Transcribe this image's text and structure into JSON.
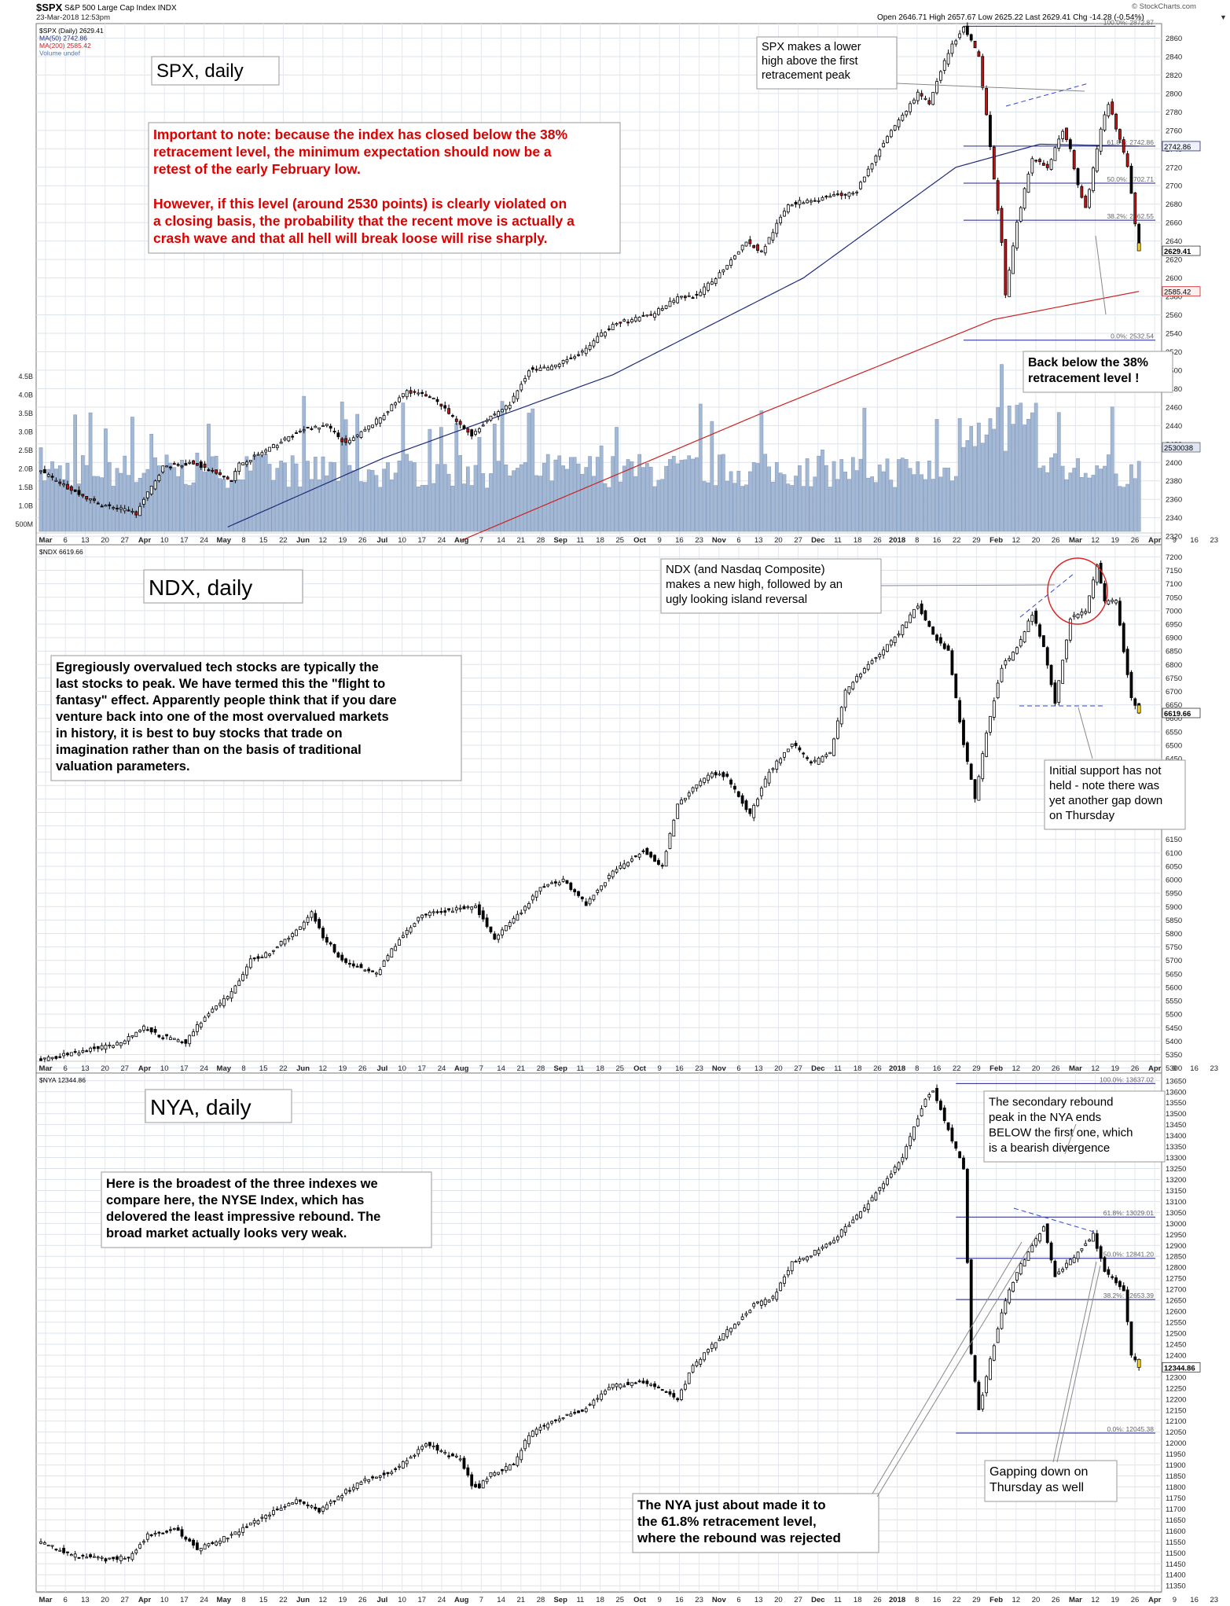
{
  "header": {
    "symbol": "$SPX",
    "name": "S&P 500 Large Cap Index INDX",
    "date": "23-Mar-2018 12:53pm",
    "ohlc": "Open 2646.71  High 2657.67  Low 2625.22  Last 2629.41  Chg -14.28 (-0.54%)",
    "brand": "© StockCharts.com"
  },
  "panels": [
    {
      "id": "spx",
      "legend": [
        "$SPX (Daily) 2629.41",
        "MA(50) 2742.86",
        "MA(200) 2585.42",
        "Volume undef"
      ],
      "legend_colors": [
        "#000000",
        "#1f2a7a",
        "#cc2222",
        "#5577aa"
      ],
      "title": "SPX, daily",
      "ylim": [
        2315,
        2880
      ],
      "ticks": [
        2320,
        2340,
        2360,
        2380,
        2400,
        2420,
        2440,
        2460,
        2480,
        2500,
        2520,
        2540,
        2560,
        2580,
        2600,
        2620,
        2640,
        2660,
        2680,
        2700,
        2720,
        2740,
        2760,
        2780,
        2800,
        2820,
        2840,
        2860
      ],
      "last_label": "2629.41",
      "ma50_label": "2742.86",
      "ma200_label": "2585.42",
      "vol_label": "2530038",
      "vol_ticks": [
        "500M",
        "1.0B",
        "1.5B",
        "2.0B",
        "2.5B",
        "3.0B",
        "3.5B",
        "4.0B",
        "4.5B"
      ],
      "fib": [
        {
          "value": 2872.87,
          "label": "100.0%: 2872.87"
        },
        {
          "value": 2742.86,
          "label": "61.8%: 2742.86"
        },
        {
          "value": 2702.71,
          "label": "50.0%: 2702.71"
        },
        {
          "value": 2662.55,
          "label": "38.2%: 2662.55"
        },
        {
          "value": 2532.54,
          "label": "0.0%: 2532.54"
        }
      ],
      "notes": [
        {
          "lines": [
            "SPX makes a lower",
            "high above the first",
            "retracement peak"
          ]
        },
        {
          "lines": [
            "Important to note: because the index has closed below the 38%",
            "retracement level, the minimum expectation should now be a",
            "retest of the early February low.",
            "",
            "However, if this level (around 2530 points) is clearly violated on",
            "a closing basis, the probability that the recent move is actually a",
            "crash wave and that all hell will break loose will rise sharply."
          ]
        },
        {
          "lines": [
            "Back below the 38%",
            "retracement level !"
          ]
        }
      ]
    },
    {
      "id": "ndx",
      "legend": [
        "$NDX 6619.66"
      ],
      "legend_colors": [
        "#000000"
      ],
      "title": "NDX,  daily",
      "ylim": [
        5290,
        7210
      ],
      "ticks": [
        5300,
        5350,
        5400,
        5450,
        5500,
        5550,
        5600,
        5650,
        5700,
        5750,
        5800,
        5850,
        5900,
        5950,
        6000,
        6050,
        6100,
        6150,
        6200,
        6250,
        6300,
        6350,
        6400,
        6450,
        6500,
        6550,
        6600,
        6650,
        6700,
        6750,
        6800,
        6850,
        6900,
        6950,
        7000,
        7050,
        7100,
        7150,
        7200
      ],
      "last_label": "6619.66",
      "notes": [
        {
          "lines": [
            "NDX (and Nasdaq Composite)",
            "makes a new high, followed by an",
            "ugly looking island reversal"
          ]
        },
        {
          "lines": [
            "Egregiously overvalued tech stocks are typically the",
            "last stocks to peak. We have termed this the \"flight to",
            "fantasy\" effect. Apparently people think that if you dare",
            "venture back into one of the most overvalued markets",
            "in history, it is best to buy stocks that trade on",
            "imagination rather than on the basis of  traditional",
            "valuation parameters."
          ]
        },
        {
          "lines": [
            "Initial support has not",
            "held - note there was",
            "yet another gap down",
            "on Thursday"
          ]
        }
      ]
    },
    {
      "id": "nya",
      "legend": [
        "$NYA 12344.86"
      ],
      "legend_colors": [
        "#000000"
      ],
      "title": "NYA, daily",
      "ylim": [
        11340,
        13660
      ],
      "ticks": [
        11350,
        11400,
        11450,
        11500,
        11550,
        11600,
        11650,
        11700,
        11750,
        11800,
        11850,
        11900,
        11950,
        12000,
        12050,
        12100,
        12150,
        12200,
        12250,
        12300,
        12350,
        12400,
        12450,
        12500,
        12550,
        12600,
        12650,
        12700,
        12750,
        12800,
        12850,
        12900,
        12950,
        13000,
        13050,
        13100,
        13150,
        13200,
        13250,
        13300,
        13350,
        13400,
        13450,
        13500,
        13550,
        13600,
        13650
      ],
      "last_label": "12344.86",
      "fib": [
        {
          "value": 13637.02,
          "label": "100.0%: 13637.02"
        },
        {
          "value": 13029.01,
          "label": "61.8%: 13029.01"
        },
        {
          "value": 12841.2,
          "label": "50.0%: 12841.20"
        },
        {
          "value": 12653.39,
          "label": "38.2%: 12653.39"
        },
        {
          "value": 12045.38,
          "label": "0.0%: 12045.38"
        }
      ],
      "notes": [
        {
          "lines": [
            "The secondary rebound",
            "peak in the NYA ends",
            "BELOW the first one, which",
            "is a bearish divergence"
          ]
        },
        {
          "lines": [
            "Here is the broadest of the three indexes we",
            "compare here, the NYSE Index, which has",
            "delovered the least impressive rebound. The",
            "broad market actually looks very weak."
          ]
        },
        {
          "lines": [
            "The NYA just about made it to",
            "the 61.8% retracement level,",
            "where the rebound was rejected"
          ]
        },
        {
          "lines": [
            "Gapping down on",
            "Thursday as well"
          ]
        }
      ]
    }
  ],
  "xaxis": {
    "labels": [
      "Mar",
      "6",
      "13",
      "20",
      "27",
      "Apr",
      "10",
      "17",
      "24",
      "May",
      "8",
      "15",
      "22",
      "Jun",
      "12",
      "19",
      "26",
      "Jul",
      "10",
      "17",
      "24",
      "Aug",
      "7",
      "14",
      "21",
      "28",
      "Sep",
      "11",
      "18",
      "25",
      "Oct",
      "9",
      "16",
      "23",
      "Nov",
      "6",
      "13",
      "20",
      "27",
      "Dec",
      "11",
      "18",
      "26",
      "2018",
      "8",
      "16",
      "22",
      "29",
      "Feb",
      "12",
      "20",
      "26",
      "Mar",
      "12",
      "19",
      "26",
      "Apr",
      "9",
      "16",
      "23"
    ]
  },
  "chart_data": [
    {
      "type": "candlestick",
      "name": "$SPX (Daily)",
      "x_range": [
        "2017-03-01",
        "2018-03-23"
      ],
      "anchors": [
        [
          0,
          2390
        ],
        [
          8,
          2370
        ],
        [
          15,
          2355
        ],
        [
          25,
          2345
        ],
        [
          32,
          2395
        ],
        [
          40,
          2400
        ],
        [
          50,
          2380
        ],
        [
          52,
          2398
        ],
        [
          60,
          2415
        ],
        [
          68,
          2435
        ],
        [
          75,
          2440
        ],
        [
          80,
          2420
        ],
        [
          85,
          2435
        ],
        [
          90,
          2452
        ],
        [
          96,
          2478
        ],
        [
          103,
          2470
        ],
        [
          110,
          2440
        ],
        [
          113,
          2430
        ],
        [
          118,
          2450
        ],
        [
          123,
          2463
        ],
        [
          128,
          2500
        ],
        [
          134,
          2503
        ],
        [
          142,
          2520
        ],
        [
          150,
          2550
        ],
        [
          160,
          2560
        ],
        [
          167,
          2578
        ],
        [
          172,
          2580
        ],
        [
          178,
          2605
        ],
        [
          185,
          2640
        ],
        [
          189,
          2628
        ],
        [
          196,
          2680
        ],
        [
          203,
          2685
        ],
        [
          210,
          2690
        ],
        [
          214,
          2695
        ],
        [
          220,
          2740
        ],
        [
          230,
          2800
        ],
        [
          233,
          2790
        ],
        [
          238,
          2845
        ],
        [
          242,
          2872
        ],
        [
          246,
          2840
        ],
        [
          248,
          2775
        ],
        [
          252,
          2640
        ],
        [
          253,
          2580
        ],
        [
          256,
          2660
        ],
        [
          260,
          2730
        ],
        [
          264,
          2720
        ],
        [
          268,
          2760
        ],
        [
          270,
          2740
        ],
        [
          272,
          2700
        ],
        [
          274,
          2675
        ],
        [
          278,
          2760
        ],
        [
          280,
          2790
        ],
        [
          283,
          2750
        ],
        [
          285,
          2720
        ],
        [
          287,
          2660
        ],
        [
          288,
          2635
        ]
      ],
      "ma50": [
        [
          49,
          2330
        ],
        [
          90,
          2405
        ],
        [
          150,
          2495
        ],
        [
          200,
          2600
        ],
        [
          240,
          2720
        ],
        [
          262,
          2745
        ],
        [
          288,
          2742.86
        ]
      ],
      "ma200": [
        [
          110,
          2315
        ],
        [
          190,
          2455
        ],
        [
          250,
          2555
        ],
        [
          288,
          2585.42
        ]
      ],
      "last": 2629.41
    },
    {
      "type": "candlestick",
      "name": "$NDX",
      "anchors": [
        [
          0,
          5330
        ],
        [
          10,
          5360
        ],
        [
          20,
          5390
        ],
        [
          27,
          5450
        ],
        [
          31,
          5420
        ],
        [
          38,
          5395
        ],
        [
          41,
          5460
        ],
        [
          50,
          5580
        ],
        [
          55,
          5700
        ],
        [
          60,
          5730
        ],
        [
          67,
          5810
        ],
        [
          71,
          5880
        ],
        [
          74,
          5790
        ],
        [
          79,
          5700
        ],
        [
          84,
          5670
        ],
        [
          88,
          5650
        ],
        [
          94,
          5780
        ],
        [
          100,
          5870
        ],
        [
          109,
          5890
        ],
        [
          114,
          5900
        ],
        [
          119,
          5780
        ],
        [
          126,
          5880
        ],
        [
          131,
          5970
        ],
        [
          137,
          6000
        ],
        [
          143,
          5910
        ],
        [
          150,
          6030
        ],
        [
          158,
          6110
        ],
        [
          163,
          6050
        ],
        [
          167,
          6280
        ],
        [
          172,
          6350
        ],
        [
          176,
          6400
        ],
        [
          180,
          6380
        ],
        [
          186,
          6240
        ],
        [
          191,
          6400
        ],
        [
          197,
          6510
        ],
        [
          202,
          6430
        ],
        [
          207,
          6470
        ],
        [
          211,
          6700
        ],
        [
          217,
          6800
        ],
        [
          224,
          6900
        ],
        [
          230,
          7020
        ],
        [
          234,
          6910
        ],
        [
          238,
          6850
        ],
        [
          242,
          6500
        ],
        [
          245,
          6300
        ],
        [
          248,
          6550
        ],
        [
          252,
          6790
        ],
        [
          256,
          6860
        ],
        [
          260,
          6990
        ],
        [
          263,
          6870
        ],
        [
          266,
          6660
        ],
        [
          270,
          6970
        ],
        [
          274,
          7000
        ],
        [
          277,
          7170
        ],
        [
          279,
          7030
        ],
        [
          282,
          7040
        ],
        [
          284,
          6850
        ],
        [
          286,
          6680
        ],
        [
          288,
          6620
        ]
      ],
      "last": 6619.66
    },
    {
      "type": "candlestick",
      "name": "$NYA",
      "anchors": [
        [
          0,
          11550
        ],
        [
          8,
          11490
        ],
        [
          17,
          11470
        ],
        [
          23,
          11480
        ],
        [
          28,
          11580
        ],
        [
          35,
          11610
        ],
        [
          41,
          11520
        ],
        [
          50,
          11580
        ],
        [
          60,
          11680
        ],
        [
          67,
          11740
        ],
        [
          73,
          11690
        ],
        [
          80,
          11780
        ],
        [
          86,
          11840
        ],
        [
          91,
          11860
        ],
        [
          96,
          11920
        ],
        [
          101,
          12000
        ],
        [
          106,
          11950
        ],
        [
          110,
          11930
        ],
        [
          113,
          11810
        ],
        [
          115,
          11800
        ],
        [
          118,
          11860
        ],
        [
          124,
          11900
        ],
        [
          128,
          12040
        ],
        [
          134,
          12100
        ],
        [
          142,
          12150
        ],
        [
          150,
          12260
        ],
        [
          158,
          12280
        ],
        [
          163,
          12240
        ],
        [
          167,
          12200
        ],
        [
          171,
          12350
        ],
        [
          177,
          12460
        ],
        [
          182,
          12540
        ],
        [
          187,
          12630
        ],
        [
          192,
          12660
        ],
        [
          197,
          12820
        ],
        [
          202,
          12860
        ],
        [
          208,
          12930
        ],
        [
          214,
          13030
        ],
        [
          220,
          13160
        ],
        [
          226,
          13300
        ],
        [
          232,
          13570
        ],
        [
          234,
          13610
        ],
        [
          237,
          13470
        ],
        [
          242,
          13250
        ],
        [
          244,
          12400
        ],
        [
          246,
          12150
        ],
        [
          252,
          12600
        ],
        [
          256,
          12780
        ],
        [
          260,
          12900
        ],
        [
          263,
          12990
        ],
        [
          266,
          12760
        ],
        [
          270,
          12830
        ],
        [
          276,
          12950
        ],
        [
          279,
          12780
        ],
        [
          284,
          12700
        ],
        [
          286,
          12400
        ],
        [
          288,
          12345
        ]
      ],
      "last": 12344.86
    }
  ]
}
